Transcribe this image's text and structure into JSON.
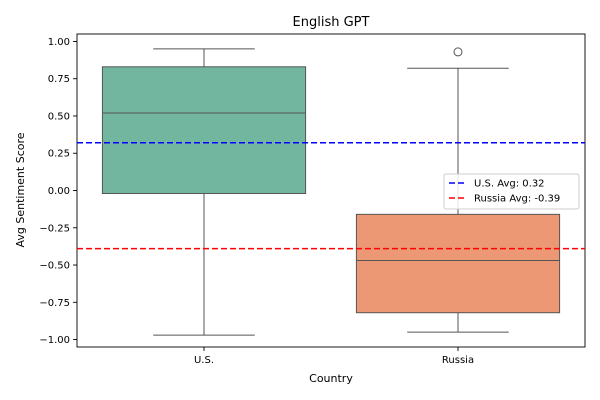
{
  "chart_data": {
    "type": "box",
    "title": "English GPT",
    "xlabel": "Country",
    "ylabel": "Avg Sentiment Score",
    "categories": [
      "U.S.",
      "Russia"
    ],
    "ylim": [
      -1.05,
      1.05
    ],
    "yticks": [
      -1.0,
      -0.75,
      -0.5,
      -0.25,
      0.0,
      0.25,
      0.5,
      0.75,
      1.0
    ],
    "ytick_labels": [
      "−1.00",
      "−0.75",
      "−0.50",
      "−0.25",
      "0.00",
      "0.25",
      "0.50",
      "0.75",
      "1.00"
    ],
    "boxes": [
      {
        "category": "U.S.",
        "whisker_low": -0.97,
        "q1": -0.02,
        "median": 0.52,
        "q3": 0.83,
        "whisker_high": 0.95,
        "outliers": [],
        "color": "#73b6a0"
      },
      {
        "category": "Russia",
        "whisker_low": -0.95,
        "q1": -0.82,
        "median": -0.47,
        "q3": -0.16,
        "whisker_high": 0.82,
        "outliers": [
          0.93
        ],
        "color": "#ec9874"
      }
    ],
    "reference_lines": [
      {
        "label": "U.S. Avg: 0.32",
        "value": 0.32,
        "color": "#0000ff",
        "style": "dashed"
      },
      {
        "label": "Russia Avg: -0.39",
        "value": -0.39,
        "color": "#ff0000",
        "style": "dashed"
      }
    ],
    "legend_position": "center-right",
    "grid": false
  }
}
